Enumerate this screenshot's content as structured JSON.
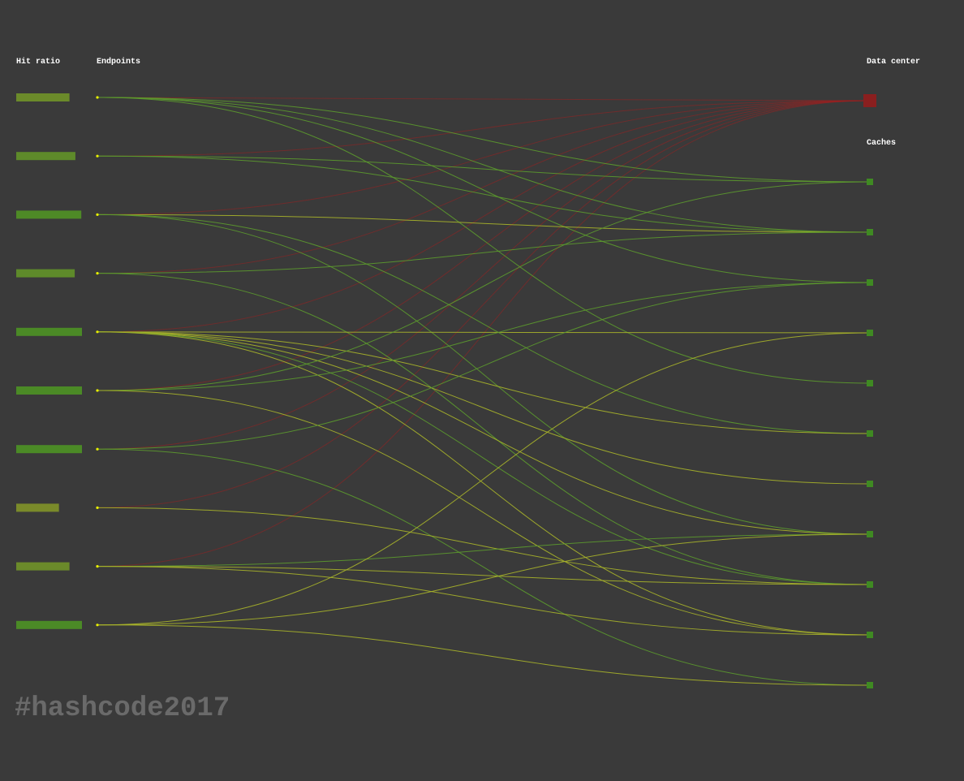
{
  "labels": {
    "hit_ratio": "Hit ratio",
    "endpoints": "Endpoints",
    "data_center": "Data center",
    "caches": "Caches"
  },
  "hashtag": "#hashcode2017",
  "colors": {
    "background": "#3a3a3a",
    "data_center": "#8a1f1f",
    "data_center_edge": "#9b2020",
    "cache_node": "#3f8a22",
    "endpoint_dot": "#e8f000",
    "edge_green": "#5c9a2e",
    "edge_yellow": "#a8b42a"
  },
  "endpoints": [
    {
      "hit_ratio": 0.81,
      "bar_color": "#6b8a2a"
    },
    {
      "hit_ratio": 0.9,
      "bar_color": "#5e8a2a"
    },
    {
      "hit_ratio": 0.99,
      "bar_color": "#4e8a26"
    },
    {
      "hit_ratio": 0.89,
      "bar_color": "#5e8a2a"
    },
    {
      "hit_ratio": 1.0,
      "bar_color": "#4b8a26"
    },
    {
      "hit_ratio": 1.0,
      "bar_color": "#4b8a26"
    },
    {
      "hit_ratio": 1.0,
      "bar_color": "#4b8a26"
    },
    {
      "hit_ratio": 0.65,
      "bar_color": "#7a8a2a"
    },
    {
      "hit_ratio": 0.81,
      "bar_color": "#6b8a2a"
    },
    {
      "hit_ratio": 1.0,
      "bar_color": "#4b8a26"
    }
  ],
  "cache_count": 10,
  "connections": {
    "datacenter": [
      0,
      1,
      2,
      3,
      4,
      5,
      6,
      7,
      8
    ],
    "cache_links": [
      {
        "endpoint": 0,
        "cache": 0,
        "tone": "green"
      },
      {
        "endpoint": 0,
        "cache": 1,
        "tone": "green"
      },
      {
        "endpoint": 0,
        "cache": 2,
        "tone": "green"
      },
      {
        "endpoint": 0,
        "cache": 4,
        "tone": "green"
      },
      {
        "endpoint": 1,
        "cache": 0,
        "tone": "green"
      },
      {
        "endpoint": 1,
        "cache": 1,
        "tone": "green"
      },
      {
        "endpoint": 2,
        "cache": 1,
        "tone": "yellow"
      },
      {
        "endpoint": 2,
        "cache": 5,
        "tone": "green"
      },
      {
        "endpoint": 2,
        "cache": 7,
        "tone": "green"
      },
      {
        "endpoint": 3,
        "cache": 1,
        "tone": "green"
      },
      {
        "endpoint": 3,
        "cache": 8,
        "tone": "green"
      },
      {
        "endpoint": 4,
        "cache": 3,
        "tone": "yellow"
      },
      {
        "endpoint": 4,
        "cache": 5,
        "tone": "yellow"
      },
      {
        "endpoint": 4,
        "cache": 6,
        "tone": "yellow"
      },
      {
        "endpoint": 4,
        "cache": 7,
        "tone": "yellow"
      },
      {
        "endpoint": 4,
        "cache": 8,
        "tone": "green"
      },
      {
        "endpoint": 4,
        "cache": 9,
        "tone": "yellow"
      },
      {
        "endpoint": 5,
        "cache": 0,
        "tone": "green"
      },
      {
        "endpoint": 5,
        "cache": 2,
        "tone": "green"
      },
      {
        "endpoint": 5,
        "cache": 9,
        "tone": "yellow"
      },
      {
        "endpoint": 6,
        "cache": 2,
        "tone": "green"
      },
      {
        "endpoint": 6,
        "cache": 10,
        "tone": "green"
      },
      {
        "endpoint": 7,
        "cache": 8,
        "tone": "yellow"
      },
      {
        "endpoint": 8,
        "cache": 7,
        "tone": "green"
      },
      {
        "endpoint": 8,
        "cache": 8,
        "tone": "yellow"
      },
      {
        "endpoint": 8,
        "cache": 9,
        "tone": "yellow"
      },
      {
        "endpoint": 9,
        "cache": 3,
        "tone": "yellow"
      },
      {
        "endpoint": 9,
        "cache": 7,
        "tone": "yellow"
      },
      {
        "endpoint": 9,
        "cache": 10,
        "tone": "yellow"
      }
    ]
  }
}
